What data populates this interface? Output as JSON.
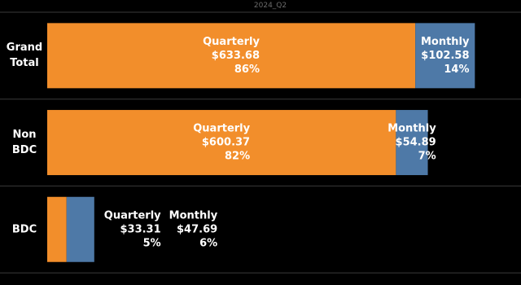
{
  "chart_data": {
    "type": "stacked-barh",
    "title": "2024_Q2",
    "categories": [
      "Grand Total",
      "Non BDC",
      "BDC"
    ],
    "series": [
      {
        "name": "Quarterly",
        "color": "#f28e2b",
        "values": [
          633.68,
          600.37,
          33.31
        ],
        "value_labels": [
          "$633.68",
          "$600.37",
          "$33.31"
        ],
        "percents": [
          86,
          82,
          5
        ],
        "percent_labels": [
          "86%",
          "82%",
          "5%"
        ]
      },
      {
        "name": "Monthly",
        "color": "#4e79a7",
        "values": [
          102.58,
          54.89,
          47.69
        ],
        "value_labels": [
          "$102.58",
          "$54.89",
          "$47.69"
        ],
        "percents": [
          14,
          7,
          6
        ],
        "percent_labels": [
          "14%",
          "7%",
          "6%"
        ]
      }
    ],
    "xlim": [
      0,
      740
    ]
  }
}
